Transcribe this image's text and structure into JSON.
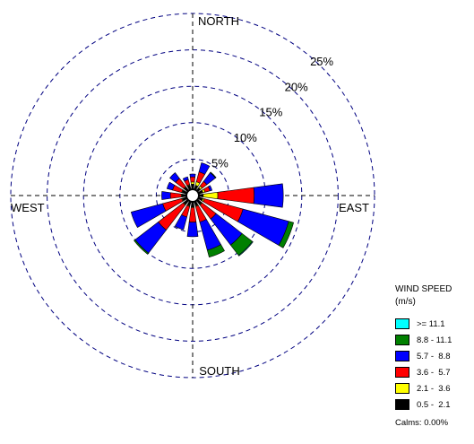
{
  "chart_data": {
    "type": "wind-rose",
    "compass": {
      "north": "NORTH",
      "south": "SOUTH",
      "east": "EAST",
      "west": "WEST"
    },
    "rings": [
      {
        "value": 5,
        "label": "5%"
      },
      {
        "value": 10,
        "label": "10%"
      },
      {
        "value": 15,
        "label": "15%"
      },
      {
        "value": 20,
        "label": "20%"
      },
      {
        "value": 25,
        "label": "25%"
      }
    ],
    "rmax": 25,
    "legend": {
      "title_line1": "WIND SPEED",
      "title_line2": "(m/s)",
      "calms": "Calms: 0.00%",
      "bins": [
        {
          "label": ">= 11.1",
          "color": "#00ffff"
        },
        {
          "label": "8.8 - 11.1",
          "color": "#008000"
        },
        {
          "label": "5.7 -  8.8",
          "color": "#0000ff"
        },
        {
          "label": "3.6 -  5.7",
          "color": "#ff0000"
        },
        {
          "label": "2.1 -  3.6",
          "color": "#ffff00"
        },
        {
          "label": "0.5 -  2.1",
          "color": "#000000"
        }
      ]
    },
    "bin_colors_inner_to_outer": [
      "#000000",
      "#ffff00",
      "#ff0000",
      "#0000ff",
      "#008000",
      "#00ffff"
    ],
    "sector_width_deg": 15,
    "directions_deg": [
      0,
      22.5,
      45,
      67.5,
      90,
      112.5,
      135,
      157.5,
      180,
      202.5,
      225,
      247.5,
      270,
      292.5,
      315,
      337.5
    ],
    "series": [
      {
        "name": "0.5 - 2.1",
        "values": [
          0.7,
          0.6,
          0.5,
          0.6,
          0.6,
          0.6,
          0.7,
          0.6,
          0.7,
          0.6,
          0.7,
          0.6,
          0.6,
          0.6,
          0.6,
          0.6
        ]
      },
      {
        "name": "2.1 - 3.6",
        "values": [
          0.3,
          0.5,
          0.3,
          0.3,
          2.0,
          0.2,
          0.1,
          0.1,
          0.1,
          0.1,
          0.1,
          0.1,
          0.1,
          0.1,
          0.1,
          0.1
        ]
      },
      {
        "name": "3.6 - 5.7",
        "values": [
          0.7,
          1.4,
          0.8,
          0.7,
          5.0,
          5.5,
          2.4,
          2.2,
          2.0,
          1.5,
          4.3,
          2.7,
          1.5,
          1.3,
          1.4,
          0.7
        ]
      },
      {
        "name": "5.7 - 8.8",
        "values": [
          0.4,
          1.3,
          1.5,
          0.3,
          4.0,
          6.5,
          4.5,
          4.0,
          2.0,
          1.8,
          4.0,
          4.5,
          1.2,
          0.8,
          1.0,
          0.4
        ]
      },
      {
        "name": "8.8 - 11.1",
        "values": [
          0,
          0,
          0.1,
          0,
          0,
          0.7,
          1.8,
          1.0,
          0,
          0,
          0.2,
          0,
          0,
          0,
          0,
          0
        ]
      },
      {
        "name": ">= 11.1",
        "values": [
          0,
          0,
          0,
          0,
          0,
          0,
          0.1,
          0,
          0,
          0,
          0,
          0,
          0,
          0,
          0,
          0
        ]
      }
    ]
  }
}
